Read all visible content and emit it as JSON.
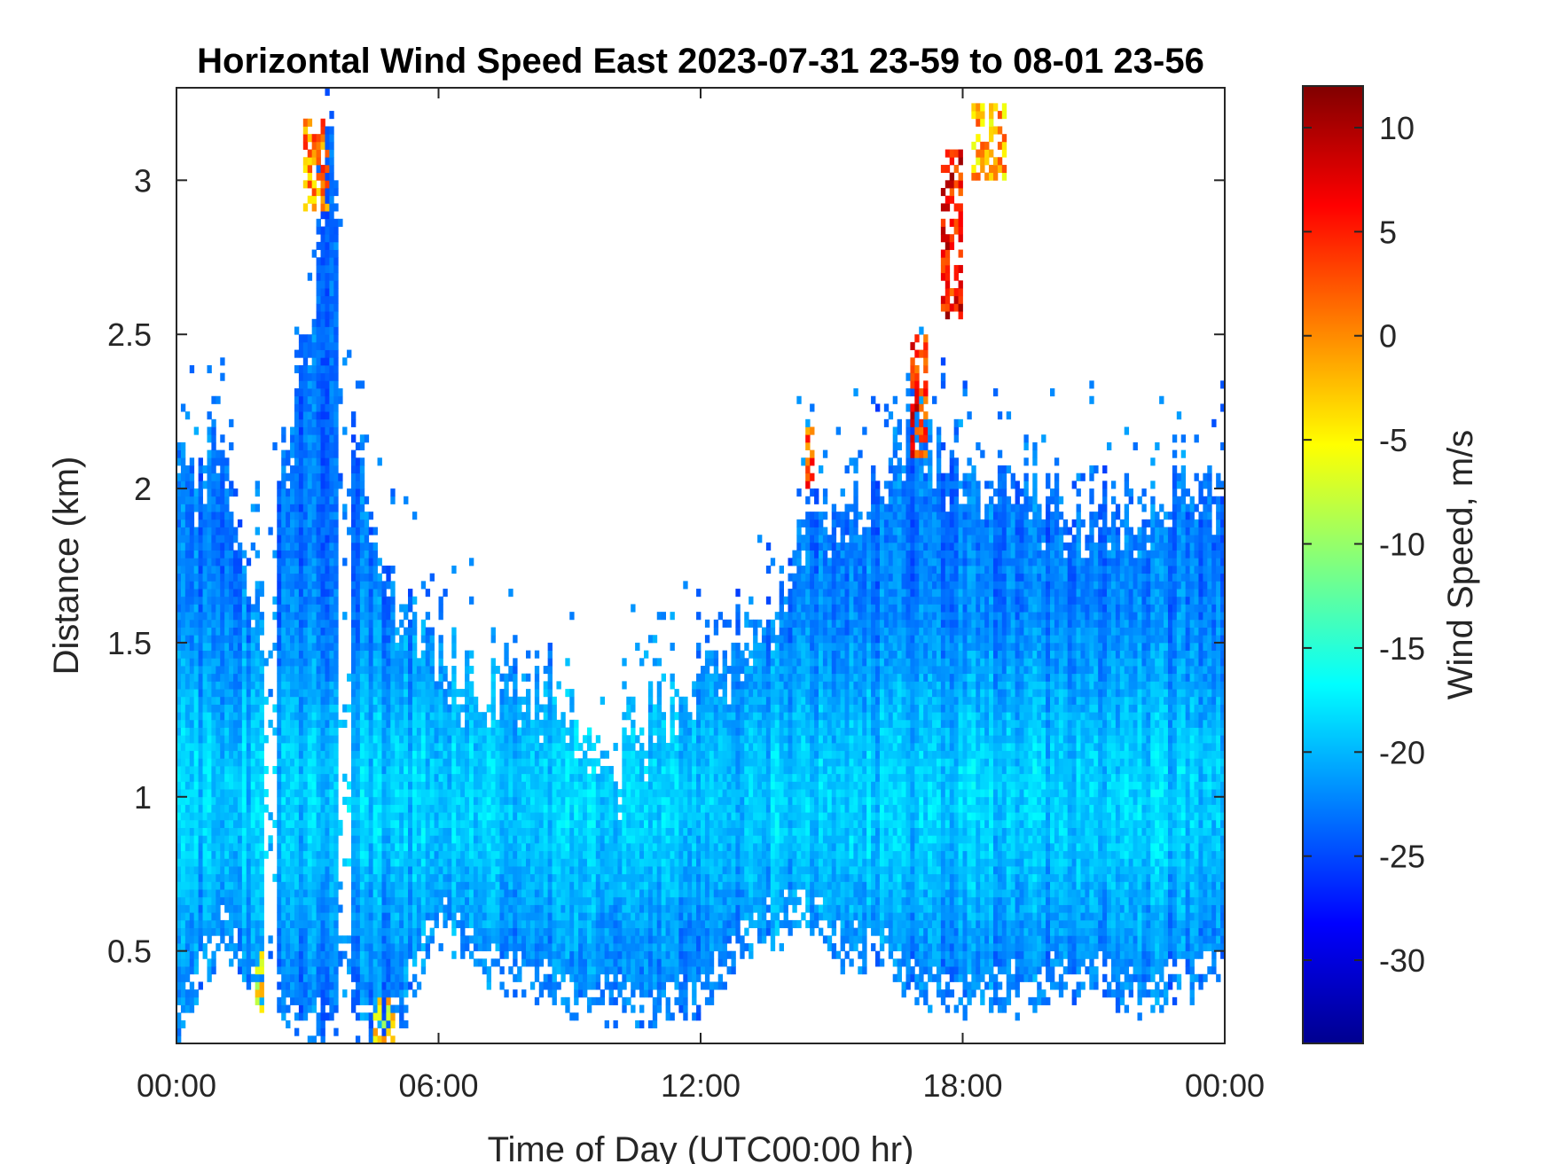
{
  "chart_data": {
    "type": "heatmap",
    "title": "Horizontal Wind Speed East 2023-07-31 23-59 to 08-01 23-56",
    "xlabel": "Time of Day (UTC00:00 hr)",
    "ylabel": "Distance (km)",
    "xlim_hours": [
      0,
      24
    ],
    "ylim_km": [
      0.2,
      3.3
    ],
    "x_ticks": [
      {
        "value": 0,
        "label": "00:00"
      },
      {
        "value": 6,
        "label": "06:00"
      },
      {
        "value": 12,
        "label": "12:00"
      },
      {
        "value": 18,
        "label": "18:00"
      },
      {
        "value": 24,
        "label": "00:00"
      }
    ],
    "y_ticks": [
      {
        "value": 0.5,
        "label": "0.5"
      },
      {
        "value": 1,
        "label": "1"
      },
      {
        "value": 1.5,
        "label": "1.5"
      },
      {
        "value": 2,
        "label": "2"
      },
      {
        "value": 2.5,
        "label": "2.5"
      },
      {
        "value": 3,
        "label": "3"
      }
    ],
    "colorbar": {
      "label": "Wind Speed, m/s",
      "colormap": "jet",
      "range": [
        -34,
        12
      ],
      "ticks": [
        {
          "value": 10,
          "label": "10"
        },
        {
          "value": 5,
          "label": "5"
        },
        {
          "value": 0,
          "label": "0"
        },
        {
          "value": -5,
          "label": "-5"
        },
        {
          "value": -10,
          "label": "-10"
        },
        {
          "value": -15,
          "label": "-15"
        },
        {
          "value": -20,
          "label": "-20"
        },
        {
          "value": -25,
          "label": "-25"
        },
        {
          "value": -30,
          "label": "-30"
        }
      ]
    },
    "grid": false,
    "coverage_top_km": [
      [
        0.0,
        2.1
      ],
      [
        0.5,
        2.1
      ],
      [
        1.0,
        2.2
      ],
      [
        1.5,
        1.9
      ],
      [
        2.0,
        1.6
      ],
      [
        2.5,
        2.2
      ],
      [
        3.0,
        2.5
      ],
      [
        3.5,
        3.3
      ],
      [
        4.0,
        2.2
      ],
      [
        4.5,
        2.0
      ],
      [
        5.0,
        1.65
      ],
      [
        5.5,
        1.6
      ],
      [
        6.0,
        1.55
      ],
      [
        6.5,
        1.45
      ],
      [
        7.0,
        1.42
      ],
      [
        7.5,
        1.4
      ],
      [
        8.0,
        1.45
      ],
      [
        8.5,
        1.4
      ],
      [
        9.0,
        1.35
      ],
      [
        9.5,
        1.25
      ],
      [
        10.0,
        1.15
      ],
      [
        10.5,
        1.25
      ],
      [
        11.0,
        1.35
      ],
      [
        11.5,
        1.4
      ],
      [
        12.0,
        1.45
      ],
      [
        12.5,
        1.5
      ],
      [
        13.0,
        1.55
      ],
      [
        13.5,
        1.65
      ],
      [
        14.0,
        1.8
      ],
      [
        14.5,
        2.0
      ],
      [
        15.0,
        1.9
      ],
      [
        15.5,
        2.0
      ],
      [
        16.0,
        2.1
      ],
      [
        16.5,
        2.1
      ],
      [
        17.0,
        2.3
      ],
      [
        17.5,
        2.1
      ],
      [
        18.0,
        2.1
      ],
      [
        18.5,
        2.05
      ],
      [
        19.0,
        2.05
      ],
      [
        19.5,
        2.1
      ],
      [
        20.0,
        2.0
      ],
      [
        20.5,
        2.0
      ],
      [
        21.0,
        1.95
      ],
      [
        21.5,
        1.95
      ],
      [
        22.0,
        2.0
      ],
      [
        22.5,
        2.1
      ],
      [
        23.0,
        2.1
      ],
      [
        23.5,
        2.05
      ],
      [
        24.0,
        2.0
      ]
    ],
    "coverage_bottom_km": [
      [
        0.0,
        0.2
      ],
      [
        1.0,
        0.5
      ],
      [
        2.0,
        0.3
      ],
      [
        3.0,
        0.2
      ],
      [
        4.0,
        0.25
      ],
      [
        5.0,
        0.2
      ],
      [
        6.0,
        0.55
      ],
      [
        7.0,
        0.4
      ],
      [
        8.0,
        0.35
      ],
      [
        9.0,
        0.3
      ],
      [
        10.0,
        0.3
      ],
      [
        11.0,
        0.25
      ],
      [
        12.0,
        0.3
      ],
      [
        13.0,
        0.5
      ],
      [
        14.0,
        0.55
      ],
      [
        14.5,
        0.6
      ],
      [
        15.0,
        0.45
      ],
      [
        16.0,
        0.45
      ],
      [
        17.0,
        0.35
      ],
      [
        18.0,
        0.3
      ],
      [
        19.0,
        0.3
      ],
      [
        20.0,
        0.35
      ],
      [
        21.0,
        0.35
      ],
      [
        22.0,
        0.3
      ],
      [
        23.0,
        0.35
      ],
      [
        24.0,
        0.4
      ]
    ],
    "typical_speed_ms": -23,
    "core_speed_ms": -19,
    "core_height_km": 1.0,
    "high_speed_features": [
      {
        "hours": [
          2.9,
          3.5
        ],
        "km": [
          2.9,
          3.2
        ],
        "speed_ms": 0
      },
      {
        "hours": [
          14.4,
          14.6
        ],
        "km": [
          2.0,
          2.2
        ],
        "speed_ms": 3
      },
      {
        "hours": [
          16.8,
          17.2
        ],
        "km": [
          2.1,
          2.5
        ],
        "speed_ms": 5
      },
      {
        "hours": [
          17.5,
          18.0
        ],
        "km": [
          2.55,
          3.1
        ],
        "speed_ms": 6
      },
      {
        "hours": [
          18.2,
          19.0
        ],
        "km": [
          3.0,
          3.25
        ],
        "speed_ms": -2
      },
      {
        "hours": [
          4.5,
          5.0
        ],
        "km": [
          0.2,
          0.35
        ],
        "speed_ms": -5
      },
      {
        "hours": [
          1.8,
          2.0
        ],
        "km": [
          0.25,
          0.5
        ],
        "speed_ms": -6
      }
    ]
  }
}
